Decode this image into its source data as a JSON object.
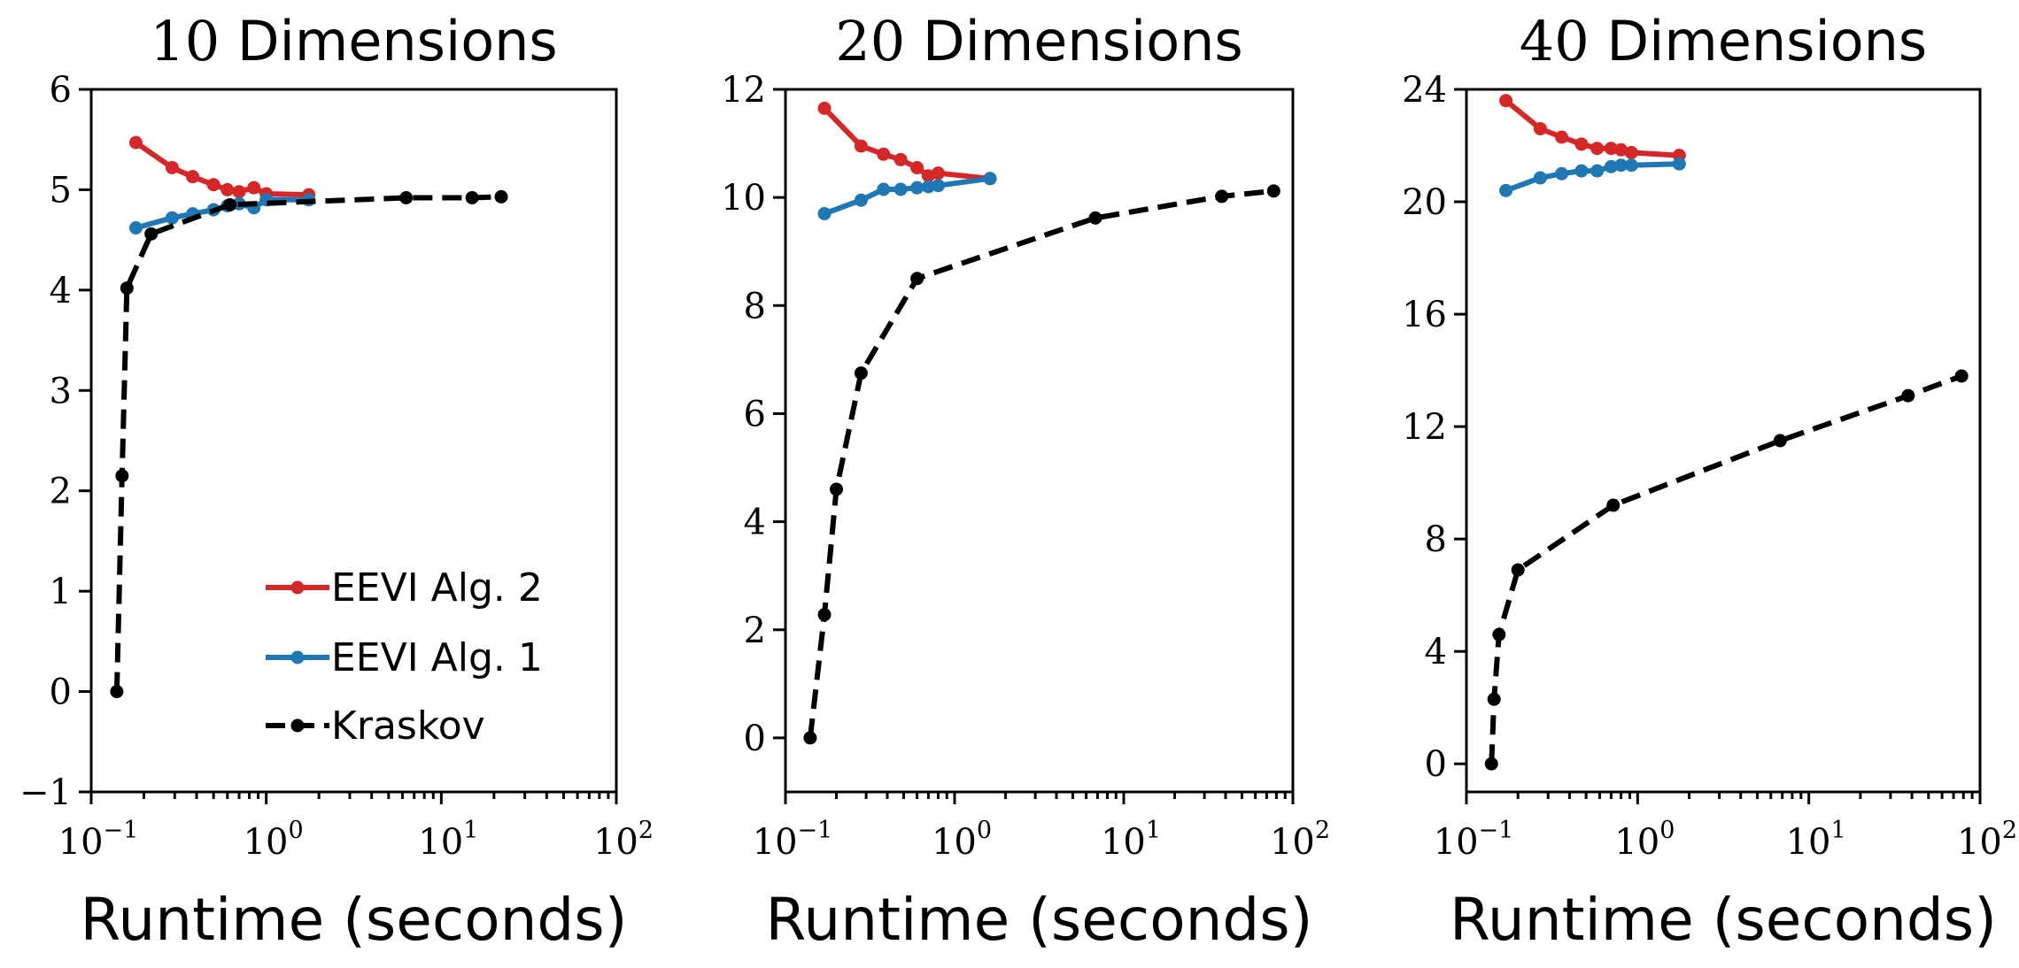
{
  "figure": {
    "xlabel": "Runtime (seconds)"
  },
  "legend": {
    "panel": 0,
    "placement": "lower-right",
    "entries": [
      {
        "series": "EEVI Alg. 2"
      },
      {
        "series": "EEVI Alg. 1"
      },
      {
        "series": "Kraskov"
      }
    ]
  },
  "colors": {
    "EEVI Alg. 2": "#d62728",
    "EEVI Alg. 1": "#1f77b4",
    "Kraskov": "#000000"
  },
  "chart_data": [
    {
      "type": "line",
      "title_num": "10",
      "title_text": "Dimensions",
      "xlabel": "Runtime (seconds)",
      "xscale": "log",
      "xlim": [
        0.1,
        100
      ],
      "xticks": [
        {
          "value": 0.1,
          "base": "10",
          "exp": "−1"
        },
        {
          "value": 1,
          "base": "10",
          "exp": "0"
        },
        {
          "value": 10,
          "base": "10",
          "exp": "1"
        },
        {
          "value": 100,
          "base": "10",
          "exp": "2"
        }
      ],
      "ylim": [
        -1,
        6
      ],
      "yticks": [
        {
          "value": -1,
          "label": "−1"
        },
        {
          "value": 0,
          "label": "0"
        },
        {
          "value": 1,
          "label": "1"
        },
        {
          "value": 2,
          "label": "2"
        },
        {
          "value": 3,
          "label": "3"
        },
        {
          "value": 4,
          "label": "4"
        },
        {
          "value": 5,
          "label": "5"
        },
        {
          "value": 6,
          "label": "6"
        }
      ],
      "series": [
        {
          "name": "EEVI Alg. 2",
          "style": "solid",
          "x": [
            0.18,
            0.29,
            0.38,
            0.5,
            0.6,
            0.7,
            0.85,
            1.0,
            1.75
          ],
          "y": [
            5.47,
            5.22,
            5.13,
            5.05,
            5.0,
            4.98,
            5.02,
            4.96,
            4.95
          ]
        },
        {
          "name": "EEVI Alg. 1",
          "style": "solid",
          "x": [
            0.18,
            0.29,
            0.38,
            0.5,
            0.6,
            0.7,
            0.85,
            1.0,
            1.75
          ],
          "y": [
            4.62,
            4.72,
            4.76,
            4.8,
            4.84,
            4.86,
            4.82,
            4.9,
            4.9
          ]
        },
        {
          "name": "Kraskov",
          "style": "dashed",
          "x": [
            0.14,
            0.15,
            0.16,
            0.22,
            0.62,
            6.3,
            15,
            22
          ],
          "y": [
            0.0,
            2.15,
            4.02,
            4.56,
            4.85,
            4.92,
            4.92,
            4.93
          ]
        }
      ]
    },
    {
      "type": "line",
      "title_num": "20",
      "title_text": "Dimensions",
      "xlabel": "Runtime (seconds)",
      "xscale": "log",
      "xlim": [
        0.1,
        100
      ],
      "xticks": [
        {
          "value": 0.1,
          "base": "10",
          "exp": "−1"
        },
        {
          "value": 1,
          "base": "10",
          "exp": "0"
        },
        {
          "value": 10,
          "base": "10",
          "exp": "1"
        },
        {
          "value": 100,
          "base": "10",
          "exp": "2"
        }
      ],
      "ylim": [
        -1,
        12
      ],
      "yticks": [
        {
          "value": 0,
          "label": "0"
        },
        {
          "value": 2,
          "label": "2"
        },
        {
          "value": 4,
          "label": "4"
        },
        {
          "value": 6,
          "label": "6"
        },
        {
          "value": 8,
          "label": "8"
        },
        {
          "value": 10,
          "label": "10"
        },
        {
          "value": 12,
          "label": "12"
        }
      ],
      "series": [
        {
          "name": "EEVI Alg. 2",
          "style": "solid",
          "x": [
            0.17,
            0.28,
            0.38,
            0.48,
            0.6,
            0.7,
            0.8,
            1.62
          ],
          "y": [
            11.65,
            10.95,
            10.8,
            10.7,
            10.55,
            10.4,
            10.45,
            10.35
          ]
        },
        {
          "name": "EEVI Alg. 1",
          "style": "solid",
          "x": [
            0.17,
            0.28,
            0.38,
            0.48,
            0.6,
            0.7,
            0.8,
            1.62
          ],
          "y": [
            9.7,
            9.95,
            10.15,
            10.15,
            10.18,
            10.2,
            10.22,
            10.35
          ]
        },
        {
          "name": "Kraskov",
          "style": "dashed",
          "x": [
            0.14,
            0.17,
            0.2,
            0.28,
            0.6,
            6.8,
            38,
            77
          ],
          "y": [
            0.0,
            2.28,
            4.6,
            6.75,
            8.5,
            9.62,
            10.02,
            10.12
          ]
        }
      ]
    },
    {
      "type": "line",
      "title_num": "40",
      "title_text": "Dimensions",
      "xlabel": "Runtime (seconds)",
      "xscale": "log",
      "xlim": [
        0.1,
        100
      ],
      "xticks": [
        {
          "value": 0.1,
          "base": "10",
          "exp": "−1"
        },
        {
          "value": 1,
          "base": "10",
          "exp": "0"
        },
        {
          "value": 10,
          "base": "10",
          "exp": "1"
        },
        {
          "value": 100,
          "base": "10",
          "exp": "2"
        }
      ],
      "ylim": [
        -1,
        24
      ],
      "yticks": [
        {
          "value": 0,
          "label": "0"
        },
        {
          "value": 4,
          "label": "4"
        },
        {
          "value": 8,
          "label": "8"
        },
        {
          "value": 12,
          "label": "12"
        },
        {
          "value": 16,
          "label": "16"
        },
        {
          "value": 20,
          "label": "20"
        },
        {
          "value": 24,
          "label": "24"
        }
      ],
      "series": [
        {
          "name": "EEVI Alg. 2",
          "style": "solid",
          "x": [
            0.17,
            0.27,
            0.36,
            0.47,
            0.58,
            0.7,
            0.8,
            0.92,
            1.75
          ],
          "y": [
            23.6,
            22.6,
            22.3,
            22.05,
            21.9,
            21.9,
            21.85,
            21.75,
            21.65
          ]
        },
        {
          "name": "EEVI Alg. 1",
          "style": "solid",
          "x": [
            0.17,
            0.27,
            0.36,
            0.47,
            0.58,
            0.7,
            0.8,
            0.92,
            1.75
          ],
          "y": [
            20.4,
            20.85,
            21.0,
            21.1,
            21.1,
            21.25,
            21.3,
            21.3,
            21.35
          ]
        },
        {
          "name": "Kraskov",
          "style": "dashed",
          "x": [
            0.14,
            0.145,
            0.155,
            0.2,
            0.72,
            6.8,
            38,
            78
          ],
          "y": [
            0.0,
            2.3,
            4.6,
            6.9,
            9.2,
            11.5,
            13.1,
            13.8
          ]
        }
      ]
    }
  ]
}
